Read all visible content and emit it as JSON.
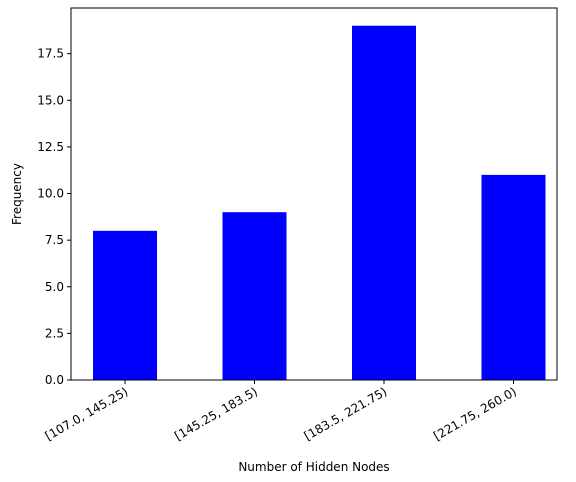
{
  "chart_data": {
    "type": "bar",
    "title": "",
    "xlabel": "Number of Hidden Nodes",
    "ylabel": "Frequency",
    "categories": [
      "[107.0, 145.25)",
      "[145.25, 183.5)",
      "[183.5, 221.75)",
      "[221.75, 260.0)"
    ],
    "values": [
      8,
      9,
      19,
      11
    ],
    "ylim": [
      0,
      19.95
    ],
    "yticks": [
      0.0,
      2.5,
      5.0,
      7.5,
      10.0,
      12.5,
      15.0,
      17.5
    ],
    "ytick_labels": [
      "0.0",
      "2.5",
      "5.0",
      "7.5",
      "10.0",
      "12.5",
      "15.0",
      "17.5"
    ],
    "bar_color": "#0000ff",
    "grid": false,
    "legend": "none"
  }
}
